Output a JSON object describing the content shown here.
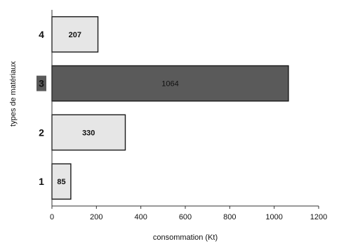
{
  "chart_data": {
    "type": "bar",
    "orientation": "horizontal",
    "categories": [
      "1",
      "2",
      "3",
      "4"
    ],
    "values": [
      85,
      330,
      1064,
      207
    ],
    "value_labels": [
      "85",
      "330",
      "1064",
      "207"
    ],
    "xlabel": "consommation (Kt)",
    "ylabel": "types de matériaux",
    "xlim": [
      0,
      1200
    ],
    "xticks": [
      "0",
      "200",
      "400",
      "600",
      "800",
      "1000",
      "1200"
    ],
    "grid": false,
    "legend": "none",
    "highlight_category": "3",
    "colors": {
      "bar_default": "#e6e6e6",
      "bar_highlight": "#5a5a5a",
      "bar_stroke": "#1a1a1a",
      "axis": "#333333",
      "text": "#111111",
      "highlight_tick_bg": "#5a5a5a"
    }
  }
}
